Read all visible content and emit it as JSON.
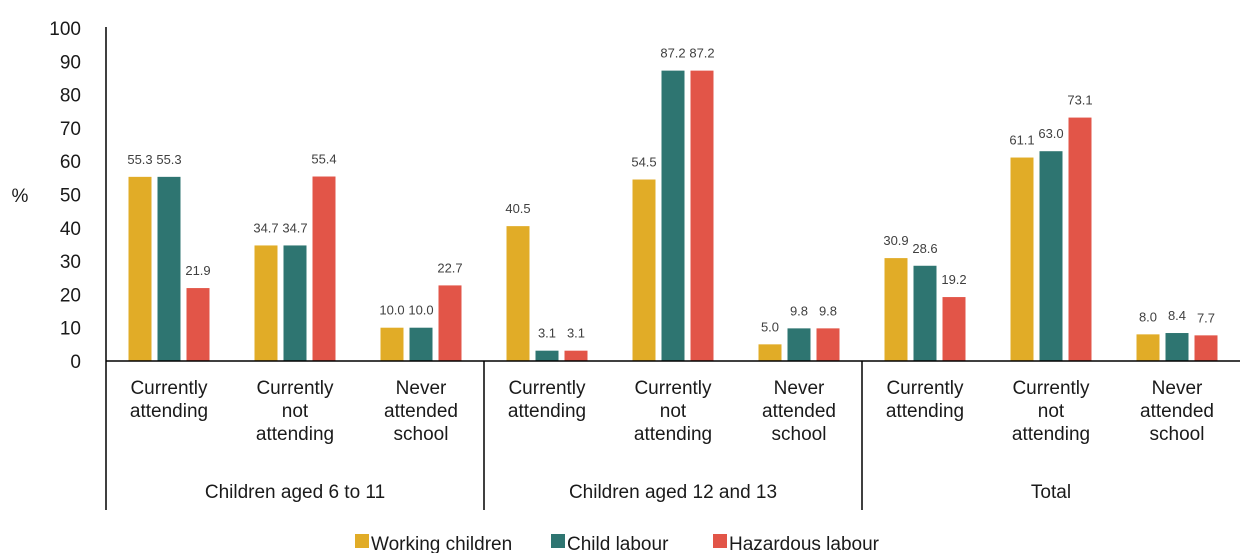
{
  "chart_data": {
    "type": "bar",
    "ylabel": "%",
    "ylim": [
      0,
      100
    ],
    "yticks": [
      0,
      10,
      20,
      30,
      40,
      50,
      60,
      70,
      80,
      90,
      100
    ],
    "grid": false,
    "legend_position": "bottom",
    "groups": [
      {
        "label": "Children aged 6 to 11",
        "categories": [
          [
            "Currently",
            "attending"
          ],
          [
            "Currently",
            "not",
            "attending"
          ],
          [
            "Never",
            "attended",
            "school"
          ]
        ]
      },
      {
        "label": "Children aged 12 and 13",
        "categories": [
          [
            "Currently",
            "attending"
          ],
          [
            "Currently",
            "not",
            "attending"
          ],
          [
            "Never",
            "attended",
            "school"
          ]
        ]
      },
      {
        "label": "Total",
        "categories": [
          [
            "Currently",
            "attending"
          ],
          [
            "Currently",
            "not",
            "attending"
          ],
          [
            "Never",
            "attended",
            "school"
          ]
        ]
      }
    ],
    "series": [
      {
        "name": "Working children",
        "color": "#E1AC27",
        "values": [
          55.3,
          34.7,
          10.0,
          40.5,
          54.5,
          5.0,
          30.9,
          61.1,
          8.0
        ],
        "labels": [
          "55.3",
          "34.7",
          "10.0",
          "40.5",
          "54.5",
          "5.0",
          "30.9",
          "61.1",
          "8.0"
        ]
      },
      {
        "name": "Child labour",
        "color": "#2E7571",
        "values": [
          55.3,
          34.7,
          10.0,
          3.1,
          87.2,
          9.8,
          28.6,
          63.0,
          8.4
        ],
        "labels": [
          "55.3",
          "34.7",
          "10.0",
          "3.1",
          "87.2",
          "9.8",
          "28.6",
          "63.0",
          "8.4"
        ]
      },
      {
        "name": "Hazardous labour",
        "color": "#E25548",
        "values": [
          21.9,
          55.4,
          22.7,
          3.1,
          87.2,
          9.8,
          19.2,
          73.1,
          7.7
        ],
        "labels": [
          "21.9",
          "55.4",
          "22.7",
          "3.1",
          "87.2",
          "9.8",
          "19.2",
          "73.1",
          "7.7"
        ]
      }
    ]
  }
}
